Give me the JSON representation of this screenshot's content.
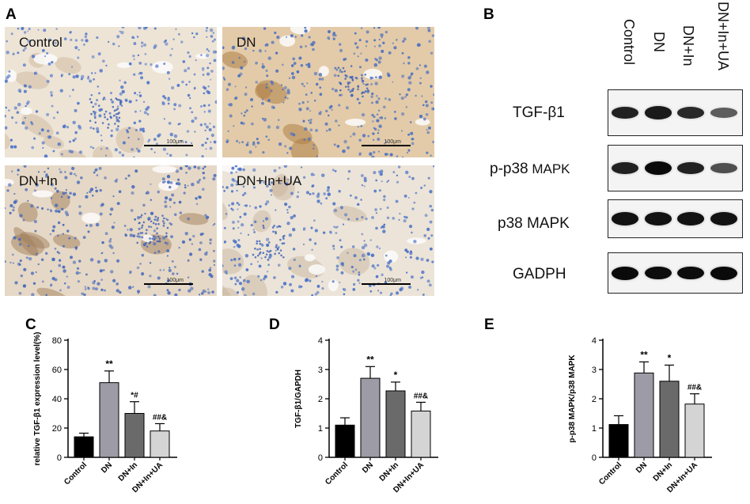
{
  "panels": {
    "A": "A",
    "B": "B",
    "C": "C",
    "D": "D",
    "E": "E"
  },
  "micrographs": [
    {
      "label": "Control",
      "scale": "100μm"
    },
    {
      "label": "DN",
      "scale": "100μm"
    },
    {
      "label": "DN+In",
      "scale": "100μm"
    },
    {
      "label": "DN+In+UA",
      "scale": "100μm"
    }
  ],
  "blot": {
    "lanes": [
      "Control",
      "DN",
      "DN+In",
      "DN+In+UA"
    ],
    "rows": [
      {
        "label": "TGF-β1",
        "small": "",
        "intensity": [
          0.85,
          0.9,
          0.8,
          0.45
        ]
      },
      {
        "label": "p-p38",
        "small": " MAPK",
        "intensity": [
          0.85,
          1.0,
          0.85,
          0.55
        ]
      },
      {
        "label": "p38 MAPK",
        "small": "",
        "intensity": [
          0.95,
          0.95,
          0.95,
          0.95
        ]
      },
      {
        "label": "GADPH",
        "small": "",
        "intensity": [
          1.0,
          0.98,
          0.98,
          1.0
        ]
      }
    ]
  },
  "colors": {
    "Control": "#000000",
    "DN": "#9d9ba6",
    "DN+In": "#6a6a6a",
    "DN+In+UA": "#d4d4d4"
  },
  "chart_data": [
    {
      "type": "bar",
      "panel": "C",
      "categories": [
        "Control",
        "DN",
        "DN+In",
        "DN+In+UA"
      ],
      "values": [
        14,
        51,
        30,
        18
      ],
      "errors": [
        2.5,
        8,
        8,
        5
      ],
      "annotations": [
        "",
        "**",
        "*#",
        "##&"
      ],
      "ylabel": "relative TGF-β1 expression level(%)",
      "ylim": [
        0,
        80
      ],
      "yticks": [
        0,
        20,
        40,
        60,
        80
      ]
    },
    {
      "type": "bar",
      "panel": "D",
      "categories": [
        "Control",
        "DN",
        "DN+In",
        "DN+In+UA"
      ],
      "values": [
        1.1,
        2.7,
        2.27,
        1.58
      ],
      "errors": [
        0.25,
        0.4,
        0.3,
        0.3
      ],
      "annotations": [
        "",
        "**",
        "*",
        "##&"
      ],
      "ylabel": "TGF-β1/GAPDH",
      "ylim": [
        0,
        4
      ],
      "yticks": [
        0,
        1,
        2,
        3,
        4
      ]
    },
    {
      "type": "bar",
      "panel": "E",
      "categories": [
        "Control",
        "DN",
        "DN+In",
        "DN+In+UA"
      ],
      "values": [
        1.12,
        2.88,
        2.6,
        1.82
      ],
      "errors": [
        0.3,
        0.38,
        0.55,
        0.35
      ],
      "annotations": [
        "",
        "**",
        "*",
        "##&"
      ],
      "ylabel": "p-p38 MAPK/p38 MAPK",
      "ylim": [
        0,
        4
      ],
      "yticks": [
        0,
        1,
        2,
        3,
        4
      ]
    }
  ]
}
